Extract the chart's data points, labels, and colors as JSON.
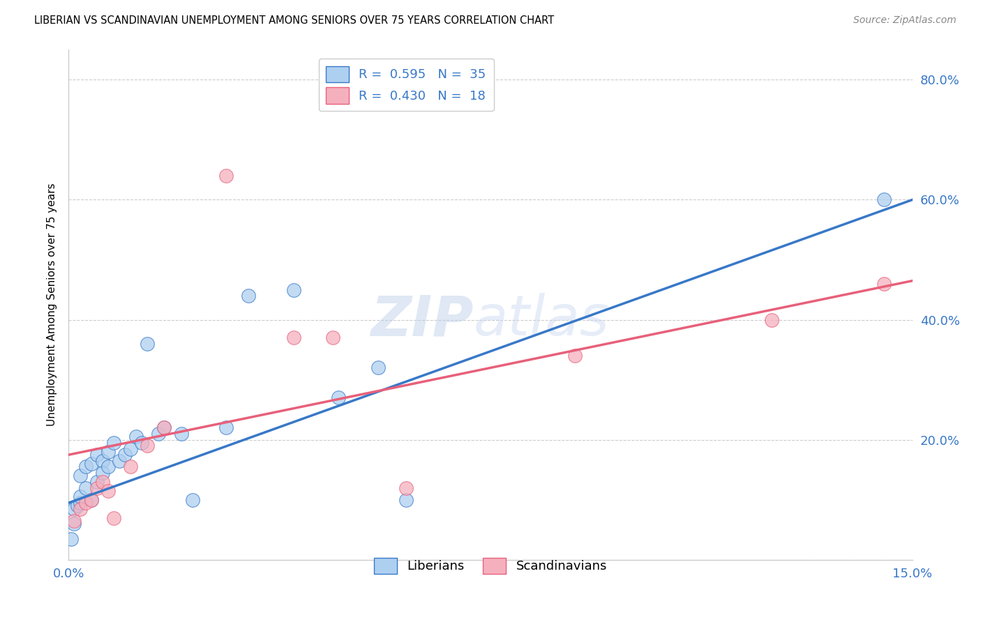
{
  "title": "LIBERIAN VS SCANDINAVIAN UNEMPLOYMENT AMONG SENIORS OVER 75 YEARS CORRELATION CHART",
  "source": "Source: ZipAtlas.com",
  "ylabel": "Unemployment Among Seniors over 75 years",
  "xlim": [
    0.0,
    0.15
  ],
  "ylim": [
    0.0,
    0.85
  ],
  "xticks": [
    0.0,
    0.03,
    0.06,
    0.09,
    0.12,
    0.15
  ],
  "xtick_labels_show": [
    "0.0%",
    "",
    "",
    "",
    "",
    "15.0%"
  ],
  "yticks": [
    0.0,
    0.2,
    0.4,
    0.6,
    0.8
  ],
  "ytick_labels_right": [
    "",
    "20.0%",
    "40.0%",
    "60.0%",
    "80.0%"
  ],
  "blue_R": "0.595",
  "blue_N": "35",
  "pink_R": "0.430",
  "pink_N": "18",
  "blue_color": "#aed0f0",
  "pink_color": "#f5b0be",
  "blue_line_color": "#3878c8",
  "pink_line_color": "#e8607a",
  "watermark_zip": "ZIP",
  "watermark_atlas": "atlas",
  "liberians_x": [
    0.0005,
    0.001,
    0.001,
    0.0015,
    0.002,
    0.002,
    0.002,
    0.003,
    0.003,
    0.004,
    0.004,
    0.005,
    0.005,
    0.006,
    0.006,
    0.007,
    0.007,
    0.008,
    0.009,
    0.01,
    0.011,
    0.012,
    0.013,
    0.014,
    0.016,
    0.017,
    0.02,
    0.022,
    0.028,
    0.032,
    0.04,
    0.048,
    0.055,
    0.06,
    0.145
  ],
  "liberians_y": [
    0.035,
    0.06,
    0.085,
    0.09,
    0.095,
    0.105,
    0.14,
    0.12,
    0.155,
    0.16,
    0.1,
    0.13,
    0.175,
    0.165,
    0.145,
    0.18,
    0.155,
    0.195,
    0.165,
    0.175,
    0.185,
    0.205,
    0.195,
    0.36,
    0.21,
    0.22,
    0.21,
    0.1,
    0.22,
    0.44,
    0.45,
    0.27,
    0.32,
    0.1,
    0.6
  ],
  "scandinavians_x": [
    0.001,
    0.002,
    0.003,
    0.004,
    0.005,
    0.006,
    0.007,
    0.008,
    0.011,
    0.014,
    0.017,
    0.028,
    0.04,
    0.047,
    0.06,
    0.09,
    0.125,
    0.145
  ],
  "scandinavians_y": [
    0.065,
    0.085,
    0.095,
    0.1,
    0.12,
    0.13,
    0.115,
    0.07,
    0.155,
    0.19,
    0.22,
    0.64,
    0.37,
    0.37,
    0.12,
    0.34,
    0.4,
    0.46
  ],
  "blue_trend_x0": 0.0,
  "blue_trend_y0": 0.095,
  "blue_trend_x1": 0.15,
  "blue_trend_y1": 0.6,
  "pink_trend_x0": 0.0,
  "pink_trend_y0": 0.175,
  "pink_trend_x1": 0.15,
  "pink_trend_y1": 0.465
}
